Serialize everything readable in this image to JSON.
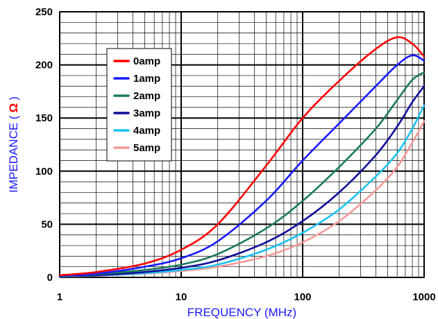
{
  "chart_data": {
    "type": "line",
    "title": "",
    "xlabel": "FREQUENCY (MHz)",
    "ylabel": "IMPEDANCE (",
    "ylabel_unit": "Ω",
    "ylabel_close": ")",
    "x_scale": "log",
    "xlim": [
      1,
      1000
    ],
    "ylim": [
      0,
      250
    ],
    "x_ticks": [
      "1",
      "10",
      "100",
      "1000"
    ],
    "y_ticks": [
      "0",
      "50",
      "100",
      "150",
      "200",
      "250"
    ],
    "grid": true,
    "legend_position": "upper-left",
    "series": [
      {
        "name": "0amp",
        "color": "#ff0000",
        "x": [
          1,
          2,
          5,
          10,
          20,
          50,
          100,
          200,
          400,
          600,
          800,
          1000
        ],
        "y": [
          2,
          5,
          13,
          26,
          50,
          105,
          150,
          185,
          215,
          226,
          220,
          208
        ]
      },
      {
        "name": "1amp",
        "color": "#1a1aff",
        "x": [
          1,
          2,
          5,
          10,
          20,
          50,
          100,
          200,
          400,
          600,
          800,
          1000
        ],
        "y": [
          1.5,
          3.5,
          10,
          18,
          34,
          72,
          110,
          145,
          180,
          200,
          209,
          204
        ]
      },
      {
        "name": "2amp",
        "color": "#1a7a5c",
        "x": [
          1,
          2,
          5,
          10,
          20,
          50,
          100,
          200,
          400,
          600,
          800,
          1000
        ],
        "y": [
          1,
          3,
          7,
          12,
          22,
          46,
          72,
          104,
          140,
          167,
          186,
          193
        ]
      },
      {
        "name": "3amp",
        "color": "#0d0d99",
        "x": [
          1,
          2,
          5,
          10,
          20,
          50,
          100,
          200,
          400,
          600,
          800,
          1000
        ],
        "y": [
          1,
          2,
          5,
          9,
          16,
          33,
          53,
          80,
          115,
          142,
          165,
          180
        ]
      },
      {
        "name": "4amp",
        "color": "#19c3f0",
        "x": [
          1,
          2,
          5,
          10,
          20,
          50,
          100,
          200,
          400,
          600,
          800,
          1000
        ],
        "y": [
          0.8,
          1.8,
          4,
          7,
          12,
          26,
          42,
          64,
          95,
          117,
          140,
          162
        ]
      },
      {
        "name": "5amp",
        "color": "#f59a9a",
        "x": [
          1,
          2,
          5,
          10,
          20,
          50,
          100,
          200,
          400,
          600,
          800,
          1000
        ],
        "y": [
          0.7,
          1.5,
          3.5,
          6,
          10,
          20,
          33,
          53,
          82,
          104,
          127,
          147
        ]
      }
    ]
  }
}
